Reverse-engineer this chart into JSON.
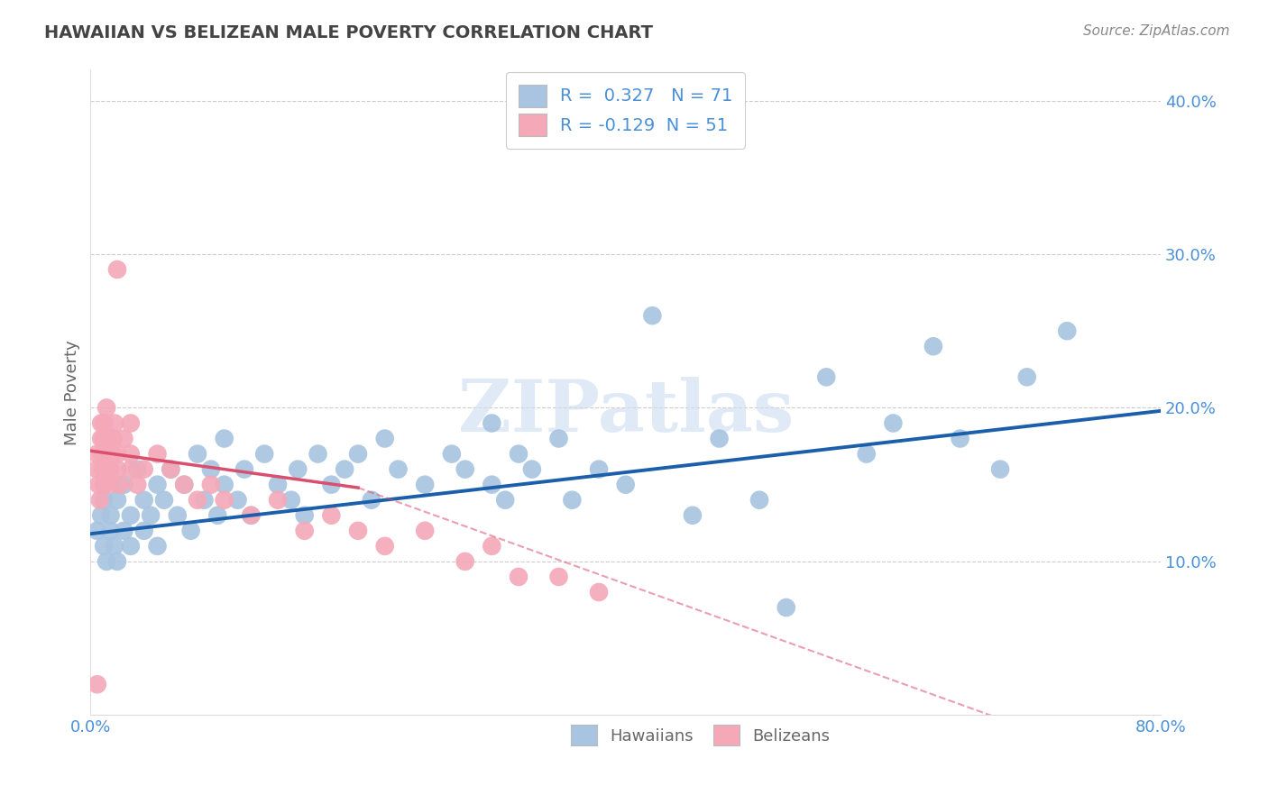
{
  "title": "HAWAIIAN VS BELIZEAN MALE POVERTY CORRELATION CHART",
  "source": "Source: ZipAtlas.com",
  "ylabel": "Male Poverty",
  "xlim": [
    0.0,
    0.8
  ],
  "ylim": [
    0.0,
    0.42
  ],
  "xticks": [
    0.0,
    0.2,
    0.4,
    0.6,
    0.8
  ],
  "xticklabels": [
    "0.0%",
    "",
    "",
    "",
    "80.0%"
  ],
  "yticks_right": [
    0.1,
    0.2,
    0.3,
    0.4
  ],
  "yticklabels_right": [
    "10.0%",
    "20.0%",
    "30.0%",
    "40.0%"
  ],
  "grid_yticks": [
    0.1,
    0.2,
    0.3,
    0.4
  ],
  "hawaiian_R": 0.327,
  "hawaiian_N": 71,
  "belizean_R": -0.129,
  "belizean_N": 51,
  "hawaiian_color": "#a8c4e0",
  "belizean_color": "#f4a8b8",
  "hawaiian_line_color": "#1b5faa",
  "belizean_line_color": "#d94f6e",
  "hawaiian_x": [
    0.005,
    0.008,
    0.01,
    0.01,
    0.012,
    0.015,
    0.015,
    0.018,
    0.02,
    0.02,
    0.025,
    0.025,
    0.03,
    0.03,
    0.035,
    0.04,
    0.04,
    0.045,
    0.05,
    0.05,
    0.055,
    0.06,
    0.065,
    0.07,
    0.075,
    0.08,
    0.085,
    0.09,
    0.095,
    0.1,
    0.1,
    0.11,
    0.115,
    0.12,
    0.13,
    0.14,
    0.15,
    0.155,
    0.16,
    0.17,
    0.18,
    0.19,
    0.2,
    0.21,
    0.22,
    0.23,
    0.25,
    0.27,
    0.28,
    0.3,
    0.3,
    0.31,
    0.32,
    0.33,
    0.35,
    0.36,
    0.38,
    0.4,
    0.42,
    0.45,
    0.47,
    0.5,
    0.52,
    0.55,
    0.58,
    0.6,
    0.63,
    0.65,
    0.68,
    0.7,
    0.73
  ],
  "hawaiian_y": [
    0.12,
    0.13,
    0.11,
    0.14,
    0.1,
    0.13,
    0.12,
    0.11,
    0.14,
    0.1,
    0.12,
    0.15,
    0.11,
    0.13,
    0.16,
    0.12,
    0.14,
    0.13,
    0.15,
    0.11,
    0.14,
    0.16,
    0.13,
    0.15,
    0.12,
    0.17,
    0.14,
    0.16,
    0.13,
    0.15,
    0.18,
    0.14,
    0.16,
    0.13,
    0.17,
    0.15,
    0.14,
    0.16,
    0.13,
    0.17,
    0.15,
    0.16,
    0.17,
    0.14,
    0.18,
    0.16,
    0.15,
    0.17,
    0.16,
    0.15,
    0.19,
    0.14,
    0.17,
    0.16,
    0.18,
    0.14,
    0.16,
    0.15,
    0.26,
    0.13,
    0.18,
    0.14,
    0.07,
    0.22,
    0.17,
    0.19,
    0.24,
    0.18,
    0.16,
    0.22,
    0.25
  ],
  "belizean_x": [
    0.005,
    0.005,
    0.006,
    0.007,
    0.008,
    0.008,
    0.009,
    0.009,
    0.01,
    0.01,
    0.01,
    0.01,
    0.01,
    0.012,
    0.012,
    0.013,
    0.014,
    0.015,
    0.015,
    0.016,
    0.017,
    0.018,
    0.02,
    0.02,
    0.022,
    0.025,
    0.03,
    0.03,
    0.035,
    0.04,
    0.05,
    0.06,
    0.07,
    0.08,
    0.09,
    0.1,
    0.12,
    0.14,
    0.16,
    0.18,
    0.2,
    0.22,
    0.25,
    0.28,
    0.3,
    0.32,
    0.35,
    0.38,
    0.02,
    0.03,
    0.005
  ],
  "belizean_y": [
    0.16,
    0.17,
    0.15,
    0.14,
    0.18,
    0.19,
    0.16,
    0.17,
    0.15,
    0.16,
    0.17,
    0.18,
    0.19,
    0.2,
    0.16,
    0.17,
    0.15,
    0.18,
    0.16,
    0.17,
    0.18,
    0.19,
    0.16,
    0.17,
    0.15,
    0.18,
    0.17,
    0.16,
    0.15,
    0.16,
    0.17,
    0.16,
    0.15,
    0.14,
    0.15,
    0.14,
    0.13,
    0.14,
    0.12,
    0.13,
    0.12,
    0.11,
    0.12,
    0.1,
    0.11,
    0.09,
    0.09,
    0.08,
    0.29,
    0.19,
    0.02
  ],
  "watermark_text": "ZIPatlas",
  "background_color": "#ffffff",
  "title_color": "#444444",
  "axis_label_color": "#666666",
  "tick_color": "#4a90d9",
  "legend_color": "#4a90d9"
}
